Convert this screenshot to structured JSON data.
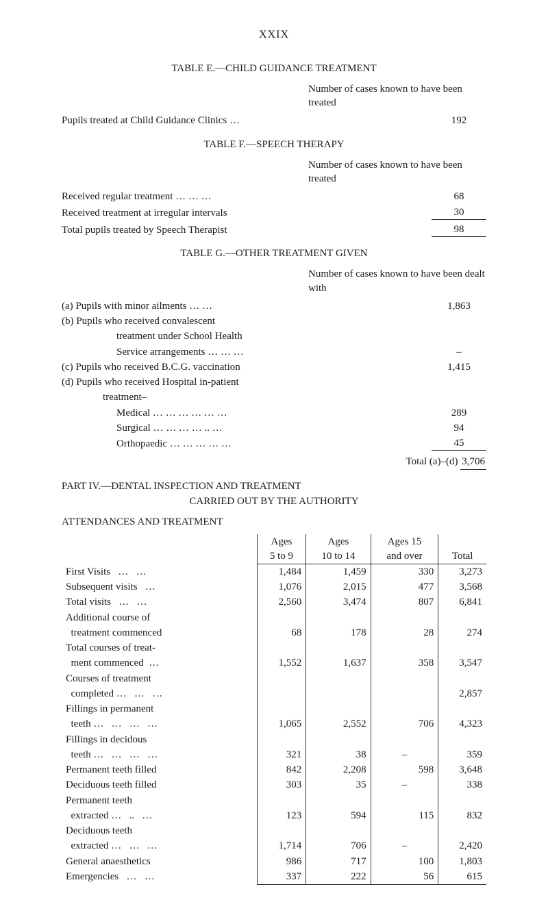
{
  "roman_header": "XXIX",
  "table_e": {
    "title": "TABLE E.—CHILD GUIDANCE TREATMENT",
    "col_header": "Number of cases known to have been treated",
    "rows": [
      {
        "label": "Pupils treated at Child Guidance Clinics …",
        "value": "192"
      }
    ]
  },
  "table_f": {
    "title": "TABLE F.—SPEECH THERAPY",
    "col_header": "Number of cases known to have been treated",
    "rows": [
      {
        "label": "Received regular treatment   …   …   …",
        "value": "68"
      },
      {
        "label": "Received treatment at irregular intervals",
        "value": "30"
      }
    ],
    "total": {
      "label": "Total pupils treated by Speech Therapist",
      "value": "98"
    }
  },
  "table_g": {
    "title": "TABLE G.—OTHER TREATMENT GIVEN",
    "col_header": "Number of cases known to have been dealt with",
    "rows": [
      {
        "label": "(a) Pupils with minor ailments     …   …",
        "value": "1,863"
      },
      {
        "label": "(b) Pupils who received convalescent",
        "value": ""
      },
      {
        "label": "treatment under School Health",
        "value": "",
        "indent": 2
      },
      {
        "label": "Service arrangements   …   …   …",
        "value": "–",
        "indent": 2
      },
      {
        "label": "(c) Pupils who received B.C.G. vaccination",
        "value": "1,415"
      },
      {
        "label": "(d) Pupils who received Hospital in-patient",
        "value": ""
      },
      {
        "label": "treatment–",
        "value": "",
        "indent": 15
      },
      {
        "label": "Medical   …   …   …   …   …   …",
        "value": "289",
        "indent": 2
      },
      {
        "label": "Surgical …   …   …   …   ..   …",
        "value": "94",
        "indent": 2
      },
      {
        "label": "Orthopaedic   …   …   …   …   …",
        "value": "45",
        "indent": 2
      }
    ],
    "total": {
      "label": "Total (a)–(d)",
      "value": "3,706"
    }
  },
  "part_iv": {
    "title": "PART IV.—DENTAL INSPECTION AND TREATMENT",
    "sub": "CARRIED OUT BY THE AUTHORITY"
  },
  "attendances": {
    "heading": "ATTENDANCES AND TREATMENT",
    "columns": [
      "",
      "Ages\n5 to 9",
      "Ages\n10 to 14",
      "Ages 15\nand over",
      "Total"
    ],
    "rows": [
      {
        "label": "First Visits   …   …",
        "c1": "1,484",
        "c2": "1,459",
        "c3": "330",
        "c4": "3,273"
      },
      {
        "label": "Subsequent visits   …",
        "c1": "1,076",
        "c2": "2,015",
        "c3": "477",
        "c4": "3,568"
      },
      {
        "label": "Total visits   …   …",
        "c1": "2,560",
        "c2": "3,474",
        "c3": "807",
        "c4": "6,841"
      },
      {
        "label": "Additional course of",
        "c1": "",
        "c2": "",
        "c3": "",
        "c4": ""
      },
      {
        "label": "  treatment commenced",
        "c1": "68",
        "c2": "178",
        "c3": "28",
        "c4": "274"
      },
      {
        "label": "Total courses of treat-",
        "c1": "",
        "c2": "",
        "c3": "",
        "c4": ""
      },
      {
        "label": "  ment commenced  …",
        "c1": "1,552",
        "c2": "1,637",
        "c3": "358",
        "c4": "3,547"
      },
      {
        "label": "Courses of treatment",
        "c1": "",
        "c2": "",
        "c3": "",
        "c4": ""
      },
      {
        "label": "  completed …   …   …",
        "c1": "",
        "c2": "",
        "c3": "",
        "c4": "2,857"
      },
      {
        "label": "Fillings in permanent",
        "c1": "",
        "c2": "",
        "c3": "",
        "c4": ""
      },
      {
        "label": "  teeth …   …   …   …",
        "c1": "1,065",
        "c2": "2,552",
        "c3": "706",
        "c4": "4,323"
      },
      {
        "label": "Fillings in decidous",
        "c1": "",
        "c2": "",
        "c3": "",
        "c4": ""
      },
      {
        "label": "  teeth …   …   …   …",
        "c1": "321",
        "c2": "38",
        "c3": "–",
        "c4": "359"
      },
      {
        "label": "Permanent teeth filled",
        "c1": "842",
        "c2": "2,208",
        "c3": "598",
        "c4": "3,648"
      },
      {
        "label": "Deciduous teeth filled",
        "c1": "303",
        "c2": "35",
        "c3": "–",
        "c4": "338"
      },
      {
        "label": "Permanent teeth",
        "c1": "",
        "c2": "",
        "c3": "",
        "c4": ""
      },
      {
        "label": "  extracted …   ..   …",
        "c1": "123",
        "c2": "594",
        "c3": "115",
        "c4": "832"
      },
      {
        "label": "Deciduous teeth",
        "c1": "",
        "c2": "",
        "c3": "",
        "c4": ""
      },
      {
        "label": "  extracted …   …   …",
        "c1": "1,714",
        "c2": "706",
        "c3": "–",
        "c4": "2,420"
      },
      {
        "label": "General anaesthetics",
        "c1": "986",
        "c2": "717",
        "c3": "100",
        "c4": "1,803"
      },
      {
        "label": "Emergencies   …   …",
        "c1": "337",
        "c2": "222",
        "c3": "56",
        "c4": "615"
      }
    ]
  }
}
